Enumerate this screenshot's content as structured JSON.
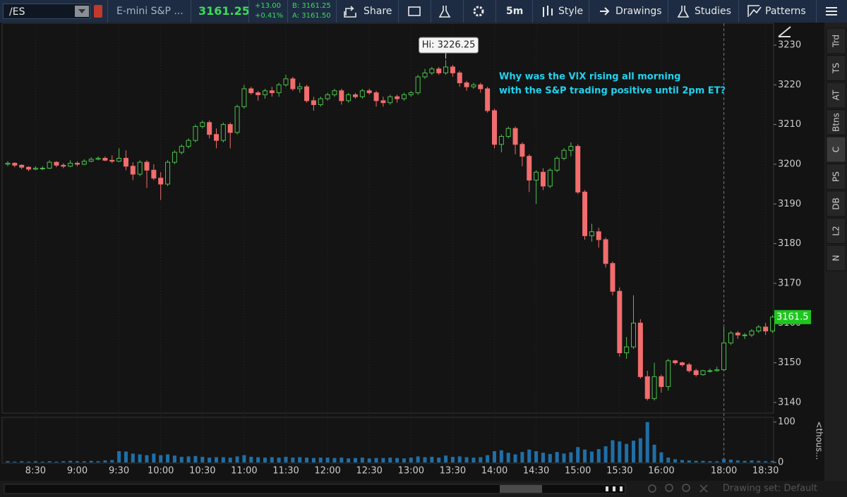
{
  "toolbar": {
    "symbol": "/ES",
    "description": "E-mini S&P ...",
    "last": "3161.25",
    "change": "+13.00",
    "change_pct": "+0.41%",
    "bid": "B: 3161.25",
    "ask": "A: 3161.50",
    "buttons": [
      "Share",
      "5m",
      "Style",
      "Drawings",
      "Studies",
      "Patterns"
    ]
  },
  "side_tabs": [
    "Trd",
    "TS",
    "AT",
    "Btns",
    "C",
    "PS",
    "DB",
    "L2",
    "N"
  ],
  "footer": {
    "drawing_set": "Drawing set: Default"
  },
  "chart_data": {
    "type": "candlestick",
    "categories": [
      "8:10",
      "8:15",
      "8:20",
      "8:25",
      "8:30",
      "8:35",
      "8:40",
      "8:45",
      "8:50",
      "8:55",
      "9:00",
      "9:05",
      "9:10",
      "9:15",
      "9:20",
      "9:25",
      "9:30",
      "9:35",
      "9:40",
      "9:45",
      "9:50",
      "9:55",
      "10:00",
      "10:05",
      "10:10",
      "10:15",
      "10:20",
      "10:25",
      "10:30",
      "10:35",
      "10:40",
      "10:45",
      "10:50",
      "10:55",
      "11:00",
      "11:05",
      "11:10",
      "11:15",
      "11:20",
      "11:25",
      "11:30",
      "11:35",
      "11:40",
      "11:45",
      "11:50",
      "11:55",
      "12:00",
      "12:05",
      "12:10",
      "12:15",
      "12:20",
      "12:25",
      "12:30",
      "12:35",
      "12:40",
      "12:45",
      "12:50",
      "12:55",
      "13:00",
      "13:05",
      "13:10",
      "13:15",
      "13:20",
      "13:25",
      "13:30",
      "13:35",
      "13:40",
      "13:45",
      "13:50",
      "13:55",
      "14:00",
      "14:05",
      "14:10",
      "14:15",
      "14:20",
      "14:25",
      "14:30",
      "14:35",
      "14:40",
      "14:45",
      "14:50",
      "14:55",
      "15:00",
      "15:05",
      "15:10",
      "15:15",
      "15:20",
      "15:25",
      "15:30",
      "15:35",
      "15:40",
      "15:45",
      "15:50",
      "15:55",
      "16:00",
      "16:05",
      "16:10",
      "16:30",
      "16:35",
      "16:40",
      "16:45",
      "16:50",
      "16:55",
      "18:00",
      "18:05",
      "18:10",
      "18:15",
      "18:20",
      "18:25",
      "18:30",
      "18:35"
    ],
    "ohlc": [
      [
        3200,
        3200.75,
        3199.5,
        3200.25
      ],
      [
        3200.25,
        3200.5,
        3199.25,
        3199.75
      ],
      [
        3199.75,
        3200,
        3198.75,
        3199.25
      ],
      [
        3199.25,
        3199.5,
        3198.25,
        3198.75
      ],
      [
        3198.75,
        3199.5,
        3198.5,
        3199
      ],
      [
        3199,
        3199.5,
        3198.5,
        3199
      ],
      [
        3199,
        3201,
        3198.75,
        3200.5
      ],
      [
        3200.5,
        3200.75,
        3199.25,
        3199.75
      ],
      [
        3199.75,
        3200.25,
        3199,
        3199.5
      ],
      [
        3199.5,
        3201,
        3199.25,
        3200.25
      ],
      [
        3200.25,
        3200.75,
        3199.5,
        3200
      ],
      [
        3200,
        3201.25,
        3199.75,
        3200.75
      ],
      [
        3200.75,
        3201.75,
        3200.5,
        3201.25
      ],
      [
        3201.25,
        3202,
        3201,
        3201.5
      ],
      [
        3201.5,
        3202,
        3200.75,
        3201
      ],
      [
        3201,
        3202.25,
        3200.25,
        3200.75
      ],
      [
        3200.75,
        3204,
        3200.5,
        3201.5
      ],
      [
        3201.5,
        3203.5,
        3198.5,
        3199.5
      ],
      [
        3199.5,
        3200.5,
        3196,
        3197.5
      ],
      [
        3197.5,
        3201,
        3197,
        3200.5
      ],
      [
        3200.5,
        3201,
        3194,
        3198.5
      ],
      [
        3198.5,
        3200,
        3196,
        3196.5
      ],
      [
        3196.5,
        3198,
        3191,
        3195
      ],
      [
        3195,
        3201,
        3194.5,
        3200.5
      ],
      [
        3200.5,
        3203.5,
        3200,
        3203
      ],
      [
        3203,
        3205,
        3202.5,
        3204.5
      ],
      [
        3204.5,
        3206.5,
        3204,
        3206
      ],
      [
        3206,
        3210,
        3205.5,
        3209.5
      ],
      [
        3209.5,
        3211,
        3209,
        3210.5
      ],
      [
        3210.5,
        3211,
        3206.5,
        3207.5
      ],
      [
        3207.5,
        3209,
        3204,
        3206
      ],
      [
        3206,
        3210.5,
        3205.5,
        3210
      ],
      [
        3210,
        3210.5,
        3204,
        3208
      ],
      [
        3208,
        3215,
        3207.5,
        3214.5
      ],
      [
        3214.5,
        3220,
        3214,
        3219
      ],
      [
        3219,
        3219.5,
        3217.5,
        3218
      ],
      [
        3218,
        3218.5,
        3216,
        3217.5
      ],
      [
        3217.5,
        3219,
        3216.5,
        3218.5
      ],
      [
        3218.5,
        3219.5,
        3217,
        3218
      ],
      [
        3218,
        3220.5,
        3217,
        3220
      ],
      [
        3220,
        3222.5,
        3219.5,
        3221.5
      ],
      [
        3221.5,
        3222,
        3218.5,
        3219
      ],
      [
        3219,
        3220.5,
        3218,
        3219.5
      ],
      [
        3219.5,
        3220,
        3215.5,
        3216
      ],
      [
        3216,
        3217,
        3213.5,
        3215
      ],
      [
        3215,
        3217,
        3214.5,
        3216.5
      ],
      [
        3216.5,
        3218,
        3216,
        3217.5
      ],
      [
        3217.5,
        3219,
        3217,
        3218.5
      ],
      [
        3218.5,
        3219,
        3215,
        3216
      ],
      [
        3216,
        3218,
        3215.5,
        3217.5
      ],
      [
        3217.5,
        3218,
        3216.5,
        3217
      ],
      [
        3217,
        3219,
        3216.5,
        3218.5
      ],
      [
        3218.5,
        3219,
        3217.5,
        3218
      ],
      [
        3218,
        3218.5,
        3214.5,
        3216
      ],
      [
        3216,
        3217,
        3214.5,
        3215.5
      ],
      [
        3215.5,
        3217.5,
        3215,
        3217
      ],
      [
        3217,
        3217.5,
        3215.5,
        3216.5
      ],
      [
        3216.5,
        3218,
        3216,
        3217.5
      ],
      [
        3217.5,
        3218.5,
        3217,
        3218
      ],
      [
        3218,
        3222.5,
        3217.5,
        3222
      ],
      [
        3222,
        3224,
        3221.5,
        3223
      ],
      [
        3223,
        3224.5,
        3222.5,
        3224
      ],
      [
        3224,
        3224.5,
        3222.5,
        3223
      ],
      [
        3223,
        3226.25,
        3222.5,
        3224.5
      ],
      [
        3224.5,
        3225,
        3222,
        3223
      ],
      [
        3223,
        3223.5,
        3219.5,
        3220.5
      ],
      [
        3220.5,
        3221,
        3218.5,
        3219.5
      ],
      [
        3219.5,
        3220.5,
        3219,
        3220
      ],
      [
        3220,
        3220.5,
        3218,
        3219
      ],
      [
        3219,
        3219.5,
        3213,
        3213.5
      ],
      [
        3213.5,
        3214,
        3204,
        3205
      ],
      [
        3205,
        3207.5,
        3203,
        3207
      ],
      [
        3207,
        3209.5,
        3206.5,
        3209
      ],
      [
        3209,
        3209.5,
        3202.5,
        3205
      ],
      [
        3205,
        3205.5,
        3199.5,
        3202
      ],
      [
        3202,
        3202.5,
        3193,
        3196
      ],
      [
        3196,
        3198.5,
        3190,
        3198
      ],
      [
        3198,
        3199,
        3193.5,
        3194.5
      ],
      [
        3194.5,
        3199,
        3194,
        3198.5
      ],
      [
        3198.5,
        3202,
        3198,
        3201.5
      ],
      [
        3201.5,
        3204,
        3201,
        3203.5
      ],
      [
        3203.5,
        3205.5,
        3202,
        3204.5
      ],
      [
        3204.5,
        3205,
        3192.5,
        3193
      ],
      [
        3193,
        3193.5,
        3181,
        3182
      ],
      [
        3182,
        3185,
        3180.5,
        3183
      ],
      [
        3183,
        3184,
        3179,
        3181
      ],
      [
        3181,
        3181.5,
        3174,
        3175
      ],
      [
        3175,
        3175.5,
        3167,
        3168
      ],
      [
        3168,
        3169,
        3151.5,
        3152.5
      ],
      [
        3152.5,
        3156.5,
        3151,
        3154
      ],
      [
        3154,
        3167,
        3153.5,
        3160
      ],
      [
        3160,
        3161,
        3146,
        3146.5
      ],
      [
        3146.5,
        3148,
        3140.5,
        3141
      ],
      [
        3141,
        3150,
        3140.5,
        3146.5
      ],
      [
        3146.5,
        3147,
        3142.5,
        3144
      ],
      [
        3144,
        3151,
        3143,
        3150.5
      ],
      [
        3150.5,
        3150.75,
        3149.5,
        3150
      ],
      [
        3150,
        3150.25,
        3149,
        3149.5
      ],
      [
        3149.5,
        3150,
        3147.5,
        3148
      ],
      [
        3148,
        3148.5,
        3146.5,
        3147
      ],
      [
        3147,
        3148.25,
        3146.75,
        3148
      ],
      [
        3148,
        3148.5,
        3147.5,
        3148
      ],
      [
        3148,
        3149,
        3147.75,
        3148.25
      ],
      [
        3148.25,
        3159,
        3148,
        3155
      ],
      [
        3155,
        3158,
        3154.5,
        3157.5
      ],
      [
        3157.5,
        3158,
        3156,
        3157
      ],
      [
        3157,
        3157.5,
        3156,
        3157
      ],
      [
        3157,
        3158.5,
        3156.5,
        3158
      ],
      [
        3158,
        3159.5,
        3157.5,
        3159
      ],
      [
        3159,
        3160,
        3157,
        3158
      ],
      [
        3158,
        3162,
        3157.5,
        3161.5
      ]
    ],
    "up_color": "#4cc24c",
    "down_color": "#f26d6d",
    "xticks": [
      "8:30",
      "9:00",
      "9:30",
      "10:00",
      "10:30",
      "11:00",
      "11:30",
      "12:00",
      "12:30",
      "13:00",
      "13:30",
      "14:00",
      "14:30",
      "15:00",
      "15:30",
      "16:00",
      "18:00",
      "18:30"
    ],
    "ylim": [
      3137.5,
      3235.5
    ],
    "yticks": [
      3140,
      3150,
      3160,
      3170,
      3180,
      3190,
      3200,
      3210,
      3220,
      3230
    ],
    "hi_label": "Hi: 3226.25",
    "annotation": [
      "Why was the VIX rising all morning",
      "with the S&P trading positive until 2pm ET?"
    ],
    "last_price_label": "3161.5",
    "volume": {
      "values": [
        3,
        2,
        3,
        2,
        3,
        2,
        3,
        2,
        3,
        4,
        3,
        3,
        4,
        3,
        5,
        6,
        28,
        27,
        22,
        20,
        18,
        22,
        18,
        20,
        17,
        14,
        15,
        16,
        14,
        12,
        13,
        13,
        12,
        15,
        18,
        14,
        13,
        12,
        13,
        12,
        14,
        12,
        13,
        12,
        11,
        12,
        12,
        11,
        12,
        10,
        11,
        12,
        10,
        11,
        11,
        12,
        11,
        10,
        12,
        15,
        13,
        14,
        12,
        17,
        14,
        15,
        13,
        12,
        13,
        18,
        28,
        30,
        24,
        20,
        26,
        32,
        28,
        24,
        21,
        26,
        22,
        25,
        38,
        32,
        27,
        33,
        40,
        55,
        52,
        46,
        54,
        60,
        100,
        44,
        25,
        12,
        8,
        6,
        5,
        4,
        4,
        3,
        3,
        9,
        7,
        5,
        4,
        5,
        4,
        3,
        4
      ],
      "ylim": [
        0,
        110
      ],
      "yticks": [
        0,
        100
      ],
      "unit_label": "<thous...",
      "color": "#1f6fa8"
    }
  }
}
